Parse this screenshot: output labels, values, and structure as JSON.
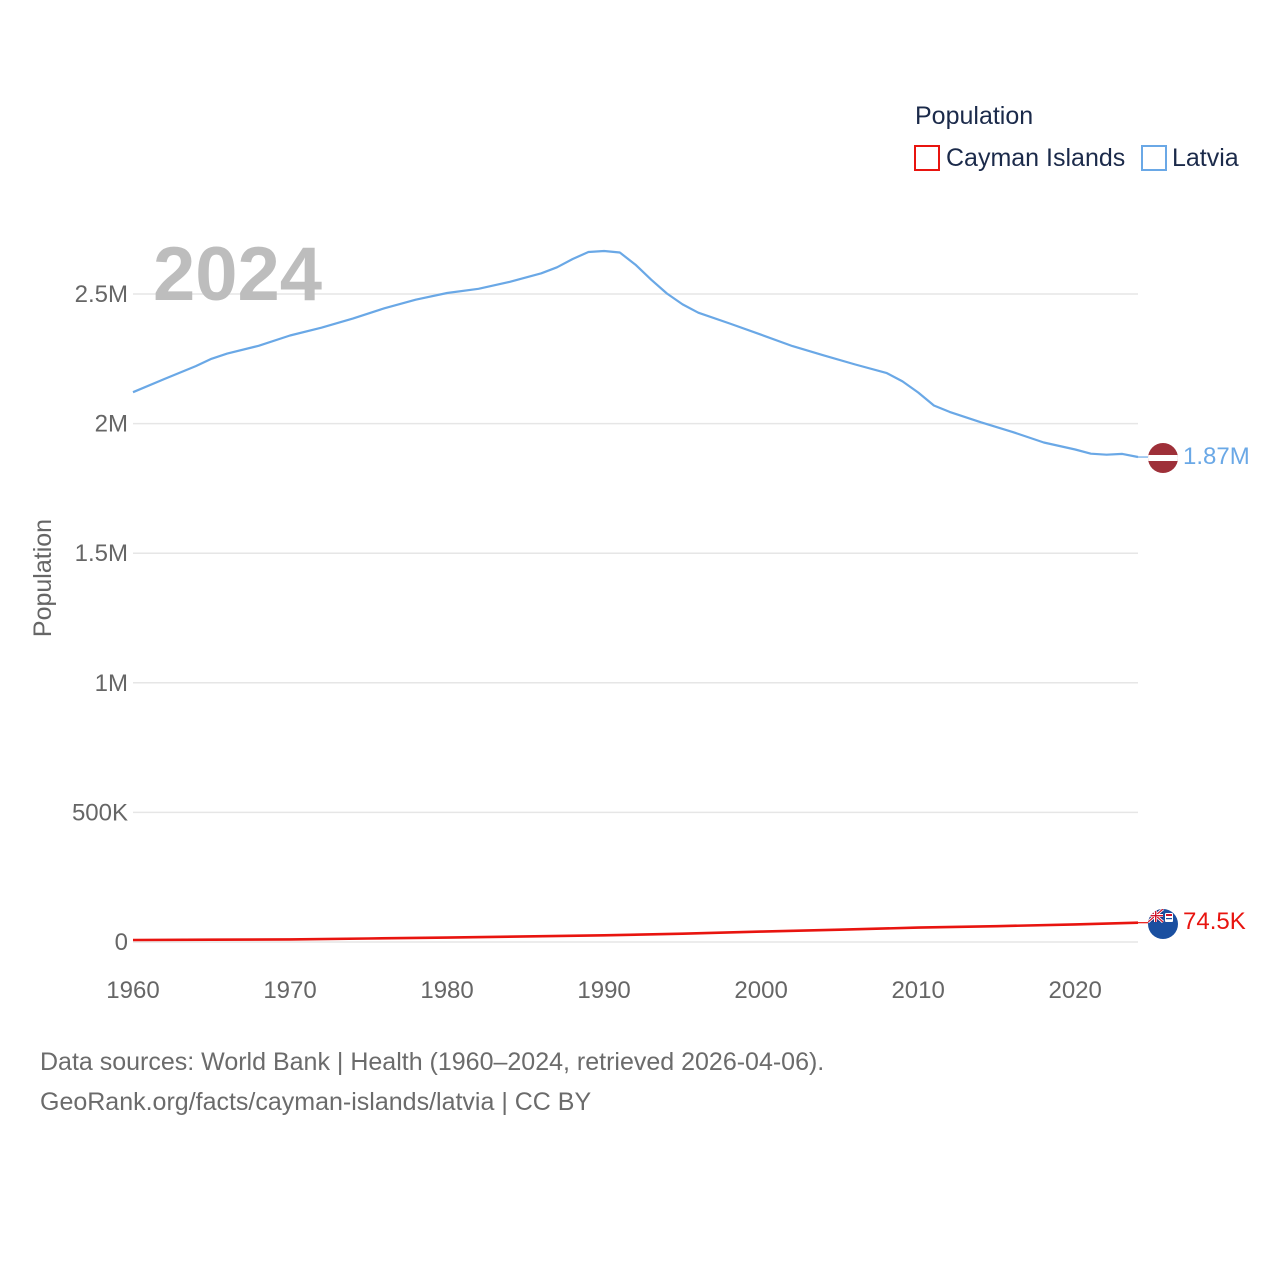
{
  "chart_data": {
    "type": "line",
    "legend_title": "Population",
    "year_label": "2024",
    "ylabel": "Population",
    "xlim": [
      1960,
      2024
    ],
    "ylim": [
      0,
      2750000
    ],
    "x_ticks": [
      {
        "value": 1960,
        "label": "1960"
      },
      {
        "value": 1970,
        "label": "1970"
      },
      {
        "value": 1980,
        "label": "1980"
      },
      {
        "value": 1990,
        "label": "1990"
      },
      {
        "value": 2000,
        "label": "2000"
      },
      {
        "value": 2010,
        "label": "2010"
      },
      {
        "value": 2020,
        "label": "2020"
      }
    ],
    "y_ticks": [
      {
        "value": 0,
        "label": "0"
      },
      {
        "value": 500000,
        "label": "500K"
      },
      {
        "value": 1000000,
        "label": "1M"
      },
      {
        "value": 1500000,
        "label": "1.5M"
      },
      {
        "value": 2000000,
        "label": "2M"
      },
      {
        "value": 2500000,
        "label": "2.5M"
      }
    ],
    "grid": true,
    "legend_position": "top-right",
    "series": [
      {
        "name": "Cayman Islands",
        "color": "#e8140f",
        "flag_icon": "cayman-islands-flag-icon",
        "end_label": "74.5K",
        "points": [
          [
            1960,
            7900
          ],
          [
            1965,
            8900
          ],
          [
            1970,
            10000
          ],
          [
            1975,
            13500
          ],
          [
            1980,
            17000
          ],
          [
            1985,
            21500
          ],
          [
            1990,
            26000
          ],
          [
            1995,
            32000
          ],
          [
            2000,
            40000
          ],
          [
            2005,
            47500
          ],
          [
            2010,
            55500
          ],
          [
            2015,
            61000
          ],
          [
            2020,
            68000
          ],
          [
            2024,
            74500
          ]
        ]
      },
      {
        "name": "Latvia",
        "color": "#6aa8e6",
        "flag_icon": "latvia-flag-icon",
        "end_label": "1.87M",
        "points": [
          [
            1960,
            2121000
          ],
          [
            1962,
            2172000
          ],
          [
            1964,
            2222000
          ],
          [
            1965,
            2250000
          ],
          [
            1966,
            2270000
          ],
          [
            1968,
            2300000
          ],
          [
            1970,
            2340000
          ],
          [
            1972,
            2370000
          ],
          [
            1974,
            2405000
          ],
          [
            1976,
            2445000
          ],
          [
            1978,
            2478000
          ],
          [
            1980,
            2504000
          ],
          [
            1982,
            2520000
          ],
          [
            1984,
            2547000
          ],
          [
            1986,
            2580000
          ],
          [
            1987,
            2603000
          ],
          [
            1988,
            2635000
          ],
          [
            1989,
            2662000
          ],
          [
            1990,
            2666000
          ],
          [
            1991,
            2660000
          ],
          [
            1992,
            2613000
          ],
          [
            1993,
            2555000
          ],
          [
            1994,
            2502000
          ],
          [
            1995,
            2460000
          ],
          [
            1996,
            2428000
          ],
          [
            1998,
            2386000
          ],
          [
            2000,
            2343000
          ],
          [
            2002,
            2299000
          ],
          [
            2004,
            2263000
          ],
          [
            2006,
            2228000
          ],
          [
            2008,
            2195000
          ],
          [
            2009,
            2163000
          ],
          [
            2010,
            2120000
          ],
          [
            2011,
            2070000
          ],
          [
            2012,
            2045000
          ],
          [
            2014,
            2005000
          ],
          [
            2016,
            1968000
          ],
          [
            2018,
            1927000
          ],
          [
            2020,
            1900000
          ],
          [
            2021,
            1884000
          ],
          [
            2022,
            1880000
          ],
          [
            2023,
            1883000
          ],
          [
            2024,
            1871000
          ]
        ]
      }
    ]
  },
  "source": {
    "line1": "Data sources: World Bank | Health (1960–2024, retrieved 2026-04-06).",
    "line2": "GeoRank.org/facts/cayman-islands/latvia | CC BY"
  }
}
